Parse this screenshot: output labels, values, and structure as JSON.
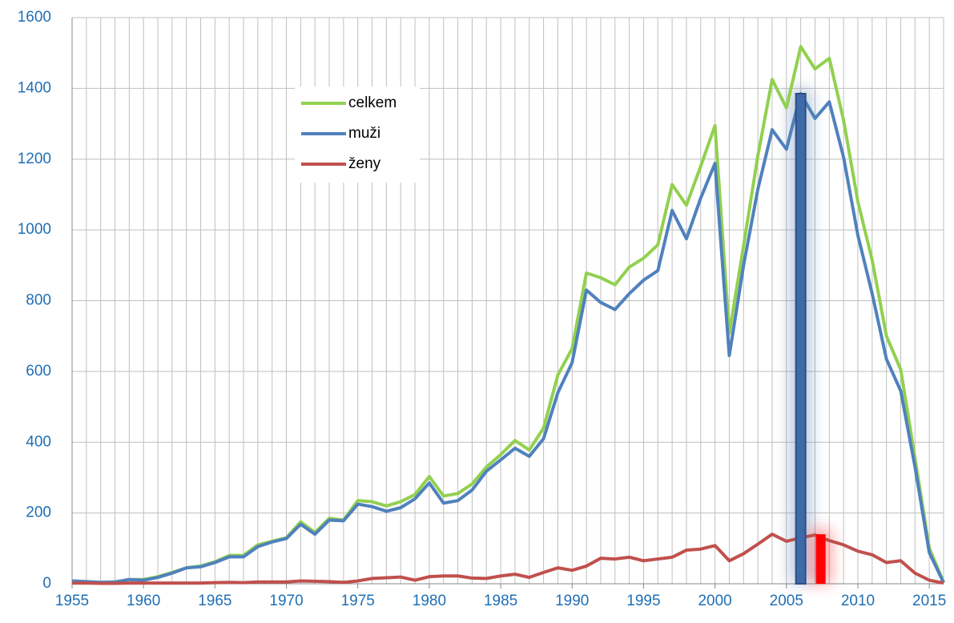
{
  "chart_data": {
    "type": "line",
    "x": [
      1955,
      1956,
      1957,
      1958,
      1959,
      1960,
      1961,
      1962,
      1963,
      1964,
      1965,
      1966,
      1967,
      1968,
      1969,
      1970,
      1971,
      1972,
      1973,
      1974,
      1975,
      1976,
      1977,
      1978,
      1979,
      1980,
      1981,
      1982,
      1983,
      1984,
      1985,
      1986,
      1987,
      1988,
      1989,
      1990,
      1991,
      1992,
      1993,
      1994,
      1995,
      1996,
      1997,
      1998,
      1999,
      2000,
      2001,
      2002,
      2003,
      2004,
      2005,
      2006,
      2007,
      2008,
      2009,
      2010,
      2011,
      2012,
      2013,
      2014,
      2015,
      2016
    ],
    "series": [
      {
        "name": "celkem",
        "color": "#92d050",
        "values": [
          8,
          6,
          4,
          5,
          12,
          12,
          20,
          32,
          45,
          50,
          62,
          80,
          80,
          110,
          120,
          130,
          175,
          145,
          185,
          180,
          235,
          232,
          220,
          232,
          252,
          303,
          248,
          255,
          282,
          330,
          365,
          405,
          378,
          440,
          590,
          665,
          878,
          865,
          845,
          895,
          920,
          958,
          1128,
          1070,
          1180,
          1295,
          708,
          955,
          1210,
          1425,
          1345,
          1518,
          1455,
          1485,
          1310,
          1080,
          915,
          700,
          605,
          355,
          100,
          5
        ]
      },
      {
        "name": "muži",
        "color": "#4f81bd",
        "values": [
          8,
          6,
          4,
          5,
          12,
          10,
          18,
          30,
          45,
          48,
          60,
          76,
          76,
          105,
          118,
          128,
          168,
          140,
          180,
          178,
          225,
          218,
          205,
          215,
          240,
          285,
          228,
          235,
          265,
          318,
          350,
          383,
          360,
          410,
          540,
          625,
          830,
          795,
          775,
          820,
          858,
          885,
          1055,
          975,
          1090,
          1188,
          645,
          900,
          1115,
          1283,
          1228,
          1385,
          1315,
          1362,
          1205,
          985,
          820,
          635,
          545,
          330,
          88,
          3
        ]
      },
      {
        "name": "ženy",
        "color": "#c0504d",
        "values": [
          2,
          2,
          1,
          1,
          2,
          2,
          2,
          2,
          2,
          2,
          3,
          4,
          3,
          5,
          5,
          5,
          8,
          7,
          6,
          4,
          8,
          15,
          17,
          19,
          10,
          20,
          22,
          22,
          16,
          15,
          22,
          27,
          18,
          32,
          45,
          38,
          50,
          72,
          70,
          75,
          65,
          70,
          75,
          95,
          98,
          108,
          65,
          85,
          112,
          140,
          120,
          130,
          138,
          122,
          110,
          92,
          82,
          60,
          65,
          30,
          10,
          2
        ]
      }
    ],
    "highlights": [
      {
        "x": 2006,
        "value": 1385,
        "color": "#3f6aa8"
      },
      {
        "x": 2007.4,
        "value": 140,
        "color": "#ff0000"
      }
    ],
    "xlim": [
      1955,
      2016
    ],
    "xticks": [
      1955,
      1960,
      1965,
      1970,
      1975,
      1980,
      1985,
      1990,
      1995,
      2000,
      2005,
      2010,
      2015
    ],
    "ylim": [
      0,
      1600
    ],
    "yticks": [
      0,
      200,
      400,
      600,
      800,
      1000,
      1200,
      1400,
      1600
    ],
    "grid": true,
    "x_grid_step": 1
  }
}
